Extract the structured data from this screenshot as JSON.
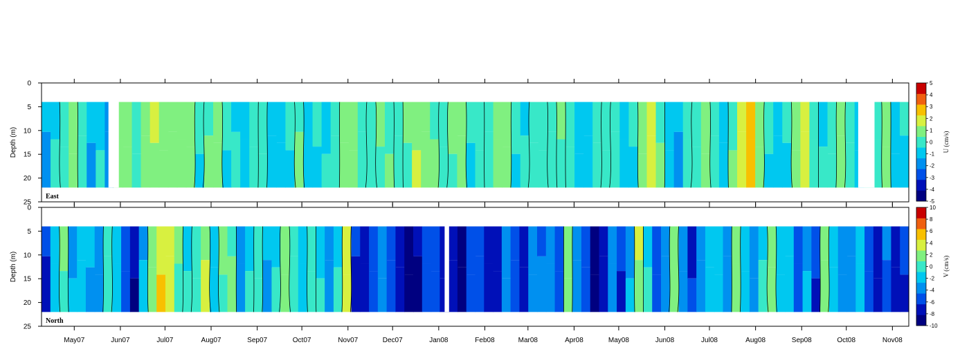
{
  "chart_data": [
    {
      "type": "heatmap",
      "panel_label": "East",
      "ylabel": "Depth (m)",
      "yticks": [
        0,
        5,
        10,
        15,
        20,
        25
      ],
      "ylim": [
        0,
        25
      ],
      "y_inverted": true,
      "x_tick_labels": [
        "May07",
        "Jun07",
        "Jul07",
        "Aug07",
        "Sep07",
        "Oct07",
        "Nov07",
        "Dec07",
        "Jan08",
        "Feb08",
        "Mar08",
        "Apr08",
        "May08",
        "Jun08",
        "Jul08",
        "Aug08",
        "Sep08",
        "Oct08",
        "Nov08"
      ],
      "xlim": [
        "2007-04-09",
        "2008-11-12"
      ],
      "data_depth_range": [
        4,
        22
      ],
      "gaps": [
        [
          "2007-05-24",
          "2007-05-31"
        ],
        [
          "2008-10-09",
          "2008-10-20"
        ]
      ],
      "colorbar": {
        "title": "U (cm/s)",
        "ticks": [
          5,
          4,
          3,
          2,
          1,
          0,
          -1,
          -2,
          -3,
          -4,
          -5
        ],
        "range": [
          -5,
          5
        ]
      },
      "contour_levels": [
        0
      ],
      "column_values": [
        -1.2,
        -0.6,
        0.4,
        0.8,
        -0.3,
        -1.0,
        -0.5,
        -1.4,
        0.6,
        1.2,
        0.3,
        0.9,
        1.5,
        0.7,
        1.0,
        1.3,
        0.5,
        -0.4,
        0.2,
        0.6,
        -0.2,
        -0.7,
        -0.5,
        -0.2,
        0.3,
        -0.6,
        -0.9,
        -0.3,
        0.2,
        -0.8,
        -0.4,
        -0.6,
        -0.2,
        0.8,
        1.1,
        0.4,
        -0.1,
        0.6,
        0.2,
        -0.3,
        0.7,
        1.3,
        0.9,
        0.3,
        -0.2,
        0.5,
        0.6,
        -0.4,
        -0.1,
        0.4,
        1.2,
        0.8,
        -0.3,
        -0.6,
        0.2,
        0.4,
        -0.2,
        0.5,
        -0.1,
        -0.8,
        -0.5,
        -0.1,
        0.2,
        -0.4,
        -0.7,
        -0.3,
        0.9,
        2.2,
        0.3,
        -0.5,
        -0.9,
        -0.4,
        0.4,
        0.8,
        -0.2,
        -0.6,
        0.3,
        1.8,
        2.6,
        1.1,
        -0.4,
        -0.8,
        -0.3,
        0.7,
        1.4,
        0.2,
        -0.6,
        -0.2,
        0.8,
        -0.1,
        -0.6,
        -0.3,
        -0.1,
        0.5,
        -1.1,
        -0.4
      ]
    },
    {
      "type": "heatmap",
      "panel_label": "North",
      "ylabel": "Depth (m)",
      "yticks": [
        0,
        5,
        10,
        15,
        20,
        25
      ],
      "ylim": [
        0,
        25
      ],
      "y_inverted": true,
      "x_tick_labels": [
        "May07",
        "Jun07",
        "Jul07",
        "Aug07",
        "Sep07",
        "Oct07",
        "Nov07",
        "Dec07",
        "Jan08",
        "Feb08",
        "Mar08",
        "Apr08",
        "May08",
        "Jun08",
        "Jul08",
        "Aug08",
        "Sep08",
        "Oct08",
        "Nov08"
      ],
      "xlim": [
        "2007-04-09",
        "2008-11-12"
      ],
      "data_depth_range": [
        4,
        22
      ],
      "gaps": [
        [
          "2008-01-05",
          "2008-01-08"
        ]
      ],
      "colorbar": {
        "title": "V (cm/s)",
        "ticks": [
          10,
          8,
          6,
          4,
          2,
          0,
          -2,
          -4,
          -6,
          -8,
          -10
        ],
        "range": [
          -10,
          10
        ]
      },
      "contour_levels": [
        0
      ],
      "column_values": [
        -6,
        -2,
        1,
        -3,
        -1,
        -2,
        -4,
        0.5,
        -2,
        -5,
        -8,
        -3,
        2,
        4,
        3,
        1,
        -1,
        0.6,
        2,
        -2,
        1,
        0.5,
        -3,
        -1,
        0.8,
        -2,
        -1,
        1.5,
        -0.5,
        -2,
        0.7,
        -1,
        -3,
        -1,
        4,
        -6,
        -7,
        -5,
        -4,
        -6,
        -7,
        -9,
        -8,
        -6,
        -5,
        -7,
        -8,
        -9,
        -6,
        -5,
        -7,
        -8,
        -4,
        -6,
        -7,
        -3,
        -5,
        -4,
        -6,
        1,
        -3,
        -6,
        -9,
        -8,
        -4,
        -6,
        -3,
        3,
        -1,
        -5,
        -3,
        2,
        -4,
        -7,
        -3,
        -1,
        -2,
        -4,
        1,
        -2,
        -3,
        -1,
        2,
        -2,
        -1,
        -5,
        -3,
        -6,
        1.5,
        -2,
        -3,
        -4,
        -2,
        -6,
        -8,
        -4,
        -7,
        -6
      ]
    }
  ]
}
